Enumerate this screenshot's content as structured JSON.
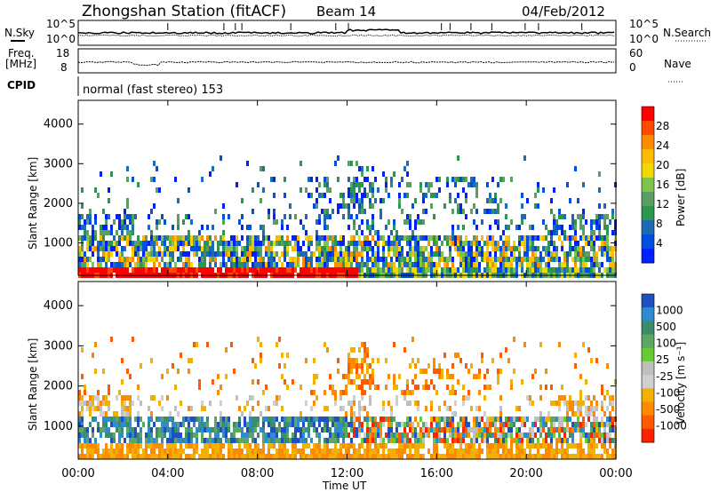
{
  "header": {
    "station": "Zhongshan Station (fitACF)",
    "beam": "Beam 14",
    "date": "04/Feb/2012"
  },
  "noise_panel": {
    "left_label": "N.Sky",
    "right_label": "N.Search",
    "left_ticks": [
      "10^5",
      "10^0"
    ],
    "right_ticks": [
      "10^5",
      "10^0"
    ]
  },
  "freq_panel": {
    "left_label_1": "Freq.",
    "left_label_2": "[MHz]",
    "right_label": "Nave",
    "left_ticks": [
      "18",
      "8"
    ],
    "right_ticks": [
      "60",
      "0"
    ]
  },
  "cpid": {
    "label": "CPID",
    "value": "normal (fast stereo) 153"
  },
  "chart_data": [
    {
      "type": "heatmap",
      "ylabel": "Slant Range [km]",
      "xlabel": "Time UT",
      "ylim": [
        180,
        4600
      ],
      "yticks": [
        1000,
        2000,
        3000,
        4000
      ],
      "xticks": [
        "00:00",
        "04:00",
        "08:00",
        "12:00",
        "16:00",
        "20:00",
        "00:00"
      ],
      "colorbar": {
        "label": "Power [dB]",
        "ticks": [
          "28",
          "24",
          "20",
          "16",
          "12",
          "8",
          "4"
        ],
        "colors": [
          "#ff0000",
          "#ff4a00",
          "#ff8c00",
          "#ffbb00",
          "#f2d800",
          "#7fc34c",
          "#5a9e62",
          "#2a9650",
          "#1f6bb3",
          "#0050e0",
          "#0020ff"
        ]
      }
    },
    {
      "type": "heatmap",
      "ylabel": "Slant Range [km]",
      "xlabel": "Time UT",
      "ylim": [
        180,
        4600
      ],
      "yticks": [
        1000,
        2000,
        3000,
        4000
      ],
      "xticks": [
        "00:00",
        "04:00",
        "08:00",
        "12:00",
        "16:00",
        "20:00",
        "00:00"
      ],
      "colorbar": {
        "label": "Velocity [m s⁻¹]",
        "ticks": [
          "1000",
          "500",
          "100",
          "25",
          "-25",
          "-100",
          "-500",
          "-1000"
        ],
        "colors": [
          "#1f4fc0",
          "#2e8bd0",
          "#3a8c6a",
          "#5aa860",
          "#66cc33",
          "#bfbfbf",
          "#cfcfcf",
          "#f2b100",
          "#ff8a00",
          "#ff5a00",
          "#ff2000"
        ]
      }
    }
  ]
}
